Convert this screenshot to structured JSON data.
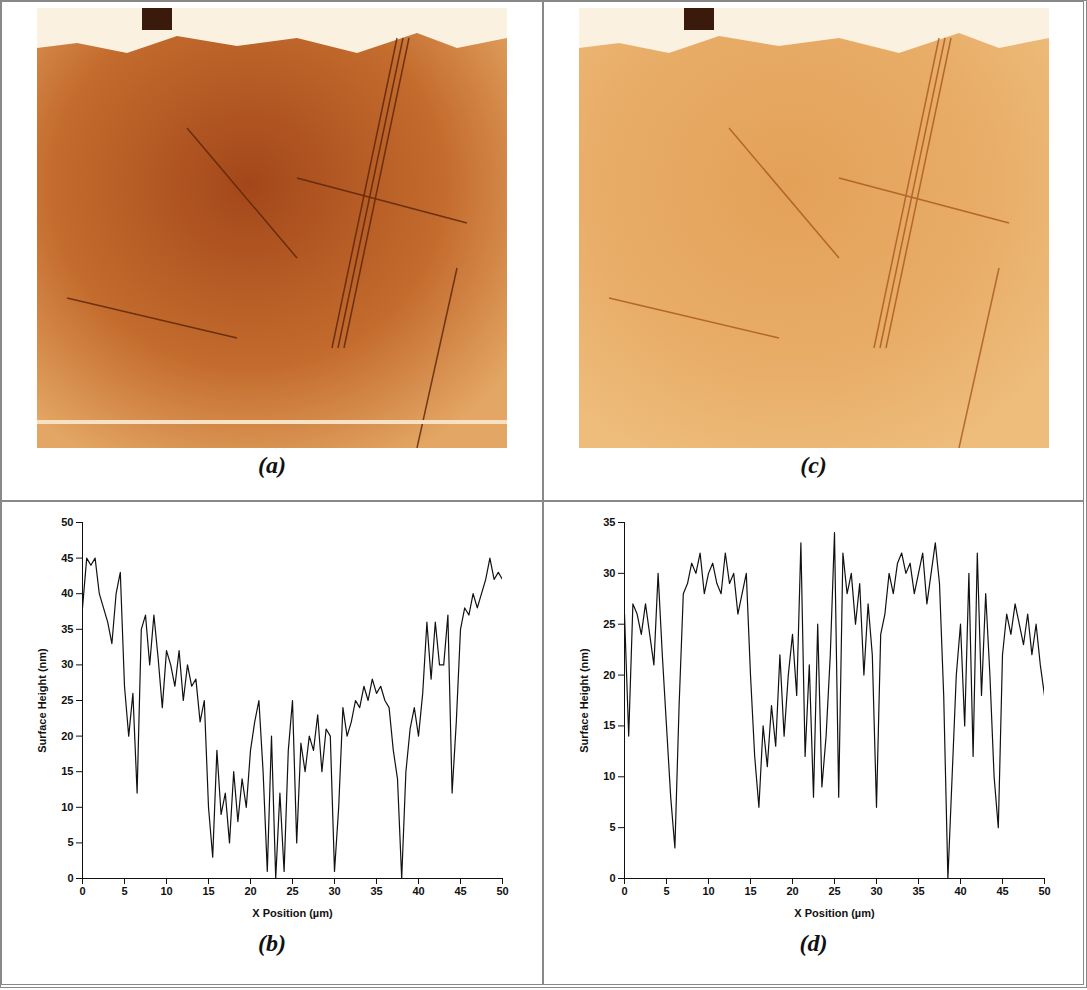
{
  "chart_data": [
    {
      "type": "image",
      "panel": "(a)"
    },
    {
      "type": "image",
      "panel": "(c)"
    },
    {
      "type": "line",
      "panel": "(b)",
      "x_label": "X Position (µm)",
      "y_label": "Surface Height (nm)",
      "xlim": [
        0,
        50
      ],
      "xticks": [
        0,
        5,
        10,
        15,
        20,
        25,
        30,
        35,
        40,
        45,
        50
      ],
      "ylim": [
        0,
        50
      ],
      "yticks": [
        0,
        5,
        10,
        15,
        20,
        25,
        30,
        35,
        40,
        45,
        50
      ],
      "color": "#111111",
      "x": [
        0,
        0.5,
        1,
        1.5,
        2,
        2.5,
        3,
        3.5,
        4,
        4.5,
        5,
        5.5,
        6,
        6.5,
        7,
        7.5,
        8,
        8.5,
        9,
        9.5,
        10,
        10.5,
        11,
        11.5,
        12,
        12.5,
        13,
        13.5,
        14,
        14.5,
        15,
        15.5,
        16,
        16.5,
        17,
        17.5,
        18,
        18.5,
        19,
        19.5,
        20,
        20.5,
        21,
        21.5,
        22,
        22.5,
        23,
        23.5,
        24,
        24.5,
        25,
        25.5,
        26,
        26.5,
        27,
        27.5,
        28,
        28.5,
        29,
        29.5,
        30,
        30.5,
        31,
        31.5,
        32,
        32.5,
        33,
        33.5,
        34,
        34.5,
        35,
        35.5,
        36,
        36.5,
        37,
        37.5,
        38,
        38.5,
        39,
        39.5,
        40,
        40.5,
        41,
        41.5,
        42,
        42.5,
        43,
        43.5,
        44,
        44.5,
        45,
        45.5,
        46,
        46.5,
        47,
        47.5,
        48,
        48.5,
        49,
        49.5,
        50
      ],
      "values": [
        38,
        45,
        44,
        45,
        40,
        38,
        36,
        33,
        40,
        43,
        27,
        20,
        26,
        12,
        35,
        37,
        30,
        37,
        31,
        24,
        32,
        30,
        27,
        32,
        25,
        30,
        27,
        28,
        22,
        25,
        10,
        3,
        18,
        9,
        12,
        5,
        15,
        8,
        14,
        10,
        18,
        22,
        25,
        15,
        1,
        20,
        0,
        12,
        1,
        18,
        25,
        5,
        19,
        15,
        20,
        18,
        23,
        15,
        21,
        20,
        1,
        10,
        24,
        20,
        22,
        25,
        24,
        27,
        25,
        28,
        26,
        27,
        25,
        24,
        18,
        14,
        0,
        15,
        21,
        24,
        20,
        26,
        36,
        28,
        36,
        30,
        30,
        37,
        12,
        22,
        35,
        38,
        37,
        40,
        38,
        40,
        42,
        45,
        42,
        43,
        42
      ]
    },
    {
      "type": "line",
      "panel": "(d)",
      "x_label": "X Position (µm)",
      "y_label": "Surface Height (nm)",
      "xlim": [
        0,
        50
      ],
      "xticks": [
        0,
        5,
        10,
        15,
        20,
        25,
        30,
        35,
        40,
        45,
        50
      ],
      "ylim": [
        0,
        35
      ],
      "yticks": [
        0,
        5,
        10,
        15,
        20,
        25,
        30,
        35
      ],
      "color": "#111111",
      "x": [
        0,
        0.5,
        1,
        1.5,
        2,
        2.5,
        3,
        3.5,
        4,
        4.5,
        5,
        5.5,
        6,
        6.5,
        7,
        7.5,
        8,
        8.5,
        9,
        9.5,
        10,
        10.5,
        11,
        11.5,
        12,
        12.5,
        13,
        13.5,
        14,
        14.5,
        15,
        15.5,
        16,
        16.5,
        17,
        17.5,
        18,
        18.5,
        19,
        19.5,
        20,
        20.5,
        21,
        21.5,
        22,
        22.5,
        23,
        23.5,
        24,
        24.5,
        25,
        25.5,
        26,
        26.5,
        27,
        27.5,
        28,
        28.5,
        29,
        29.5,
        30,
        30.5,
        31,
        31.5,
        32,
        32.5,
        33,
        33.5,
        34,
        34.5,
        35,
        35.5,
        36,
        36.5,
        37,
        37.5,
        38,
        38.5,
        39,
        39.5,
        40,
        40.5,
        41,
        41.5,
        42,
        42.5,
        43,
        43.5,
        44,
        44.5,
        45,
        45.5,
        46,
        46.5,
        47,
        47.5,
        48,
        48.5,
        49,
        49.5,
        50
      ],
      "values": [
        26,
        14,
        27,
        26,
        24,
        27,
        24,
        21,
        30,
        22,
        15,
        8,
        3,
        17,
        28,
        29,
        31,
        30,
        32,
        28,
        30,
        31,
        29,
        28,
        32,
        29,
        30,
        26,
        28,
        30,
        20,
        12,
        7,
        15,
        11,
        17,
        13,
        22,
        14,
        20,
        24,
        18,
        33,
        12,
        21,
        8,
        25,
        9,
        14,
        22,
        34,
        8,
        32,
        28,
        30,
        25,
        29,
        20,
        27,
        22,
        7,
        24,
        26,
        30,
        28,
        31,
        32,
        30,
        31,
        28,
        30,
        32,
        27,
        30,
        33,
        29,
        18,
        0,
        10,
        20,
        25,
        15,
        30,
        12,
        32,
        18,
        28,
        20,
        10,
        5,
        22,
        26,
        24,
        27,
        25,
        23,
        26,
        22,
        25,
        21,
        18
      ]
    }
  ]
}
